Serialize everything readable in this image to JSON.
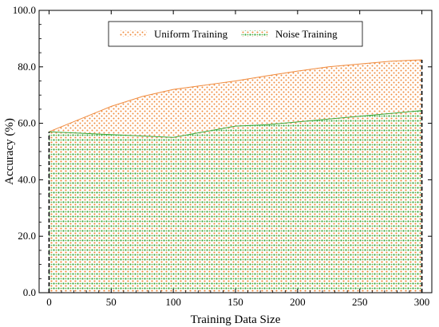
{
  "chart_data": {
    "type": "area",
    "title": "",
    "xlabel": "Training Data Size",
    "ylabel": "Accuracy (%)",
    "xlim": [
      -8,
      308
    ],
    "ylim": [
      0,
      100
    ],
    "x_ticks": [
      0,
      50,
      100,
      150,
      200,
      250,
      300
    ],
    "x_tick_labels": [
      "0",
      "50",
      "100",
      "150",
      "200",
      "250",
      "300"
    ],
    "y_ticks": [
      0,
      20,
      40,
      60,
      80,
      100
    ],
    "y_tick_labels": [
      "0.0",
      "20.0",
      "40.0",
      "60.0",
      "80.0",
      "100.0"
    ],
    "grid": false,
    "legend_position": "top-center",
    "series": [
      {
        "name": "Uniform Training",
        "color": "#f08a3c",
        "x": [
          0,
          25,
          50,
          75,
          100,
          125,
          150,
          175,
          200,
          225,
          250,
          275,
          300
        ],
        "y": [
          57.0,
          61.5,
          66.0,
          69.5,
          72.0,
          73.5,
          75.0,
          76.8,
          78.5,
          80.0,
          81.0,
          82.0,
          82.5
        ]
      },
      {
        "name": "Noise Training",
        "color": "#3aa83a",
        "x": [
          0,
          25,
          50,
          75,
          100,
          125,
          150,
          175,
          200,
          225,
          250,
          275,
          300
        ],
        "y": [
          57.0,
          56.5,
          56.0,
          55.5,
          55.0,
          57.0,
          59.0,
          59.5,
          60.5,
          61.5,
          62.5,
          63.5,
          64.5
        ]
      }
    ]
  }
}
